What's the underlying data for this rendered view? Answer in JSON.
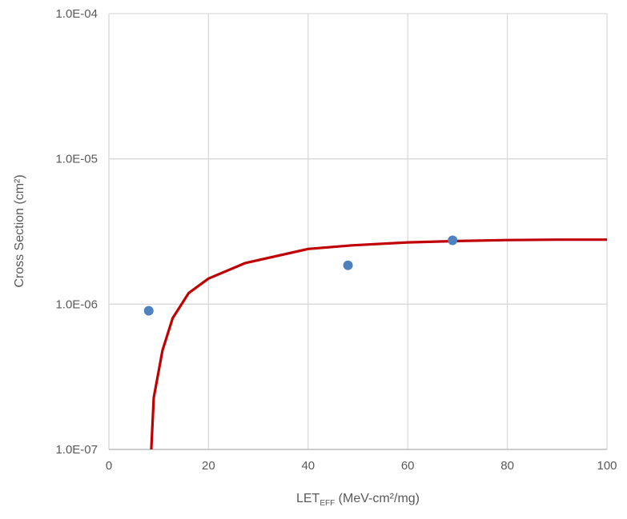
{
  "chart_data": {
    "type": "scatter",
    "title": "",
    "xlabel_main": "LET",
    "xlabel_sub": "EFF",
    "xlabel_rest": " (MeV-cm²/mg)",
    "ylabel": "Cross Section (cm²)",
    "xlim": [
      0,
      100
    ],
    "ylim": [
      1e-07,
      0.0001
    ],
    "yscale": "log",
    "grid": true,
    "x_ticks": [
      "0",
      "20",
      "40",
      "60",
      "80",
      "100"
    ],
    "x_tick_values": [
      0,
      20,
      40,
      60,
      80,
      100
    ],
    "y_ticks": [
      "1.0E-07",
      "1.0E-06",
      "1.0E-05",
      "1.0E-04"
    ],
    "y_tick_values": [
      1e-07,
      1e-06,
      1e-05,
      0.0001
    ],
    "points": {
      "color": "#4F81BD",
      "x": [
        8,
        48,
        69
      ],
      "y": [
        9e-07,
        1.85e-06,
        2.75e-06
      ]
    },
    "fit_curve": {
      "color": "#C00000",
      "x": [
        8.5,
        9.0,
        10.75,
        12.8,
        16,
        20,
        27.4,
        40,
        48.8,
        60,
        70,
        80,
        90,
        100
      ],
      "y": [
        1e-07,
        2.27e-07,
        4.8e-07,
        8e-07,
        1.19e-06,
        1.5e-06,
        1.92e-06,
        2.4e-06,
        2.54e-06,
        2.66e-06,
        2.72e-06,
        2.76e-06,
        2.78e-06,
        2.78e-06
      ]
    }
  }
}
